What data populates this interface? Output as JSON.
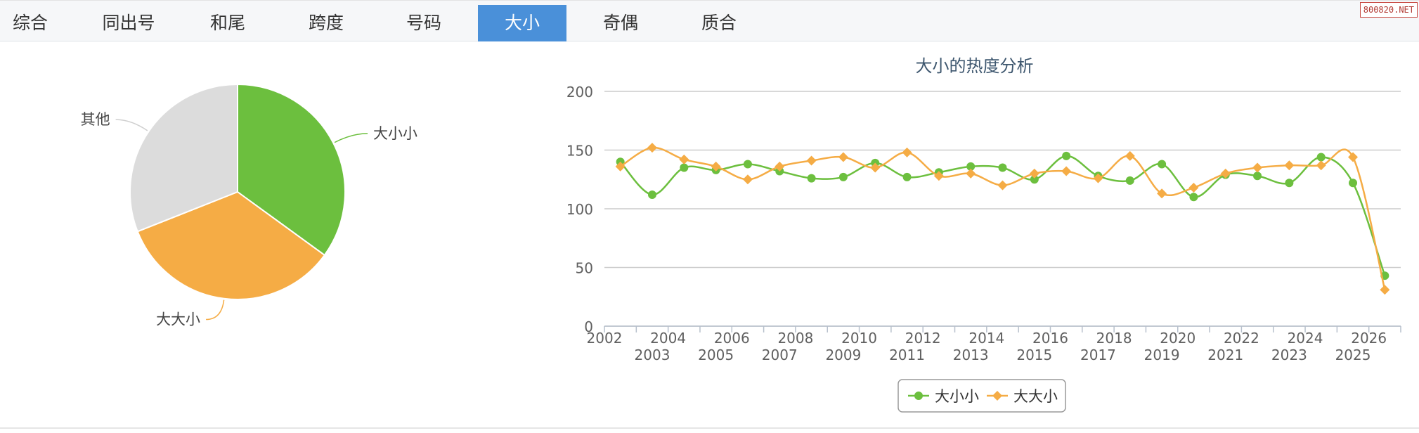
{
  "tabs": [
    {
      "label": "综合",
      "active": false
    },
    {
      "label": "同出号",
      "active": false
    },
    {
      "label": "和尾",
      "active": false
    },
    {
      "label": "跨度",
      "active": false
    },
    {
      "label": "号码",
      "active": false
    },
    {
      "label": "大小",
      "active": true
    },
    {
      "label": "奇偶",
      "active": false
    },
    {
      "label": "质合",
      "active": false
    }
  ],
  "watermark": "800820.NET",
  "colors": {
    "green": "#6cbf3e",
    "orange": "#f5ac45",
    "gray": "#dcdcdc",
    "active_tab": "#4a90d9"
  },
  "chart_data": [
    {
      "type": "pie",
      "title": "",
      "slices": [
        {
          "label": "大小小",
          "value": 35,
          "color": "#6cbf3e"
        },
        {
          "label": "大大小",
          "value": 34,
          "color": "#f5ac45"
        },
        {
          "label": "其他",
          "value": 31,
          "color": "#dcdcdc"
        }
      ]
    },
    {
      "type": "line",
      "title": "大小的热度分析",
      "xlabel": "",
      "ylabel": "",
      "ylim": [
        0,
        200
      ],
      "yticks": [
        0,
        50,
        100,
        150,
        200
      ],
      "grid": true,
      "legend_position": "bottom-center",
      "x": [
        "2002",
        "2003",
        "2004",
        "2005",
        "2006",
        "2007",
        "2008",
        "2009",
        "2010",
        "2011",
        "2012",
        "2013",
        "2014",
        "2015",
        "2016",
        "2017",
        "2018",
        "2019",
        "2020",
        "2021",
        "2022",
        "2023",
        "2024",
        "2025",
        "2026"
      ],
      "series": [
        {
          "name": "大小小",
          "color": "#6cbf3e",
          "marker": "circle",
          "values": [
            140,
            112,
            135,
            133,
            138,
            132,
            126,
            127,
            139,
            127,
            131,
            136,
            135,
            125,
            145,
            128,
            124,
            138,
            110,
            129,
            128,
            122,
            144,
            122,
            43
          ]
        },
        {
          "name": "大大小",
          "color": "#f5ac45",
          "marker": "diamond",
          "values": [
            136,
            152,
            142,
            136,
            125,
            136,
            141,
            144,
            135,
            148,
            128,
            130,
            120,
            130,
            132,
            126,
            145,
            113,
            118,
            130,
            135,
            137,
            137,
            144,
            31
          ]
        }
      ]
    }
  ]
}
